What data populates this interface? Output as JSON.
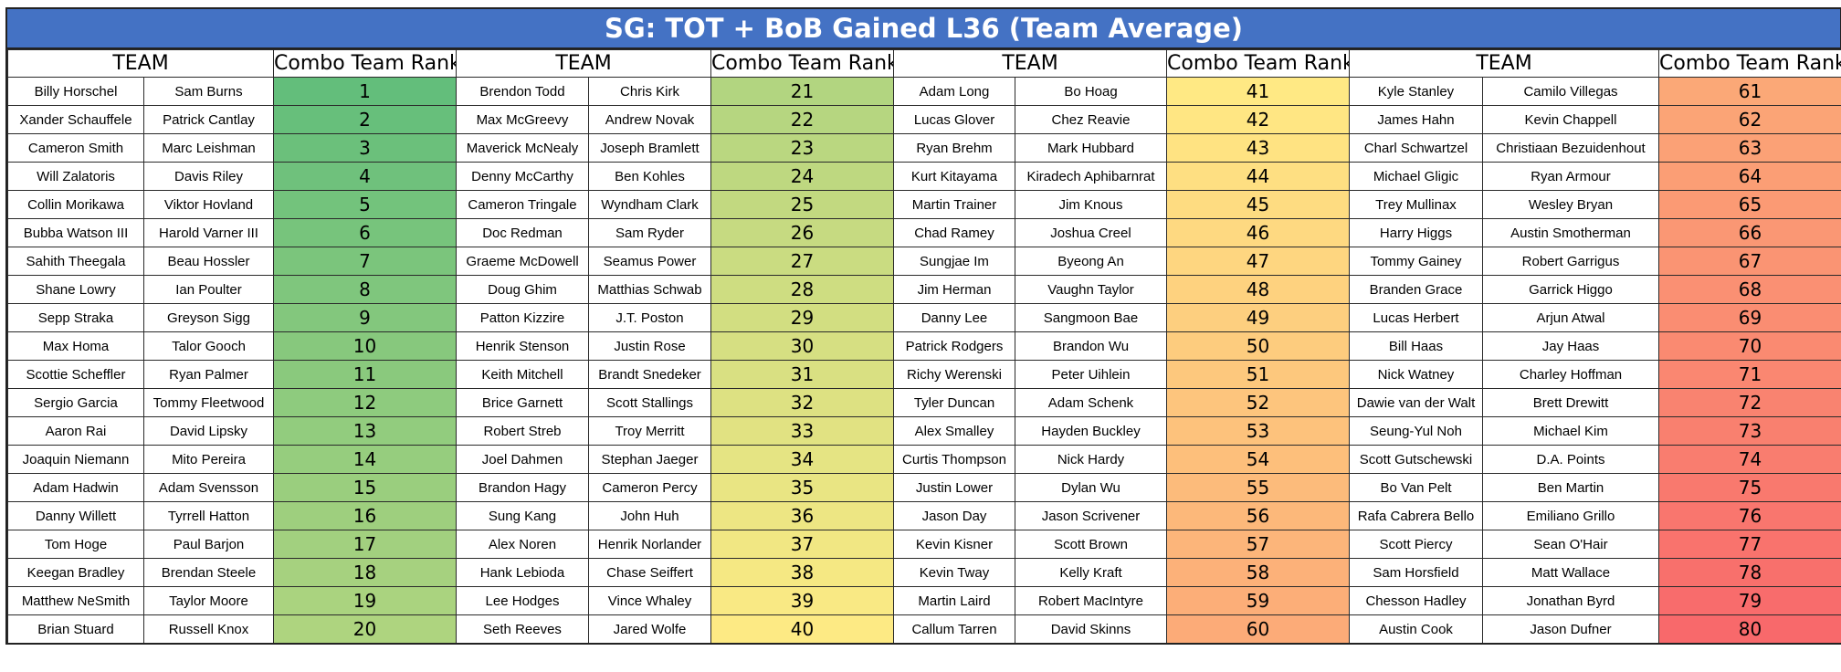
{
  "title": "SG: TOT + BoB Gained L36 (Team Average)",
  "headers": {
    "team": "TEAM",
    "rank": "Combo Team Rank"
  },
  "rank_colors": {
    "low": "#63BE7B",
    "mid": "#FFEB84",
    "high": "#F8696B"
  },
  "teams": [
    {
      "p1": "Billy Horschel",
      "p2": "Sam Burns",
      "rank": 1
    },
    {
      "p1": "Xander Schauffele",
      "p2": "Patrick Cantlay",
      "rank": 2
    },
    {
      "p1": "Cameron Smith",
      "p2": "Marc Leishman",
      "rank": 3
    },
    {
      "p1": "Will Zalatoris",
      "p2": "Davis Riley",
      "rank": 4
    },
    {
      "p1": "Collin Morikawa",
      "p2": "Viktor Hovland",
      "rank": 5
    },
    {
      "p1": "Bubba Watson III",
      "p2": "Harold Varner III",
      "rank": 6
    },
    {
      "p1": "Sahith Theegala",
      "p2": "Beau Hossler",
      "rank": 7
    },
    {
      "p1": "Shane Lowry",
      "p2": "Ian Poulter",
      "rank": 8
    },
    {
      "p1": "Sepp Straka",
      "p2": "Greyson Sigg",
      "rank": 9
    },
    {
      "p1": "Max Homa",
      "p2": "Talor Gooch",
      "rank": 10
    },
    {
      "p1": "Scottie Scheffler",
      "p2": "Ryan Palmer",
      "rank": 11
    },
    {
      "p1": "Sergio Garcia",
      "p2": "Tommy Fleetwood",
      "rank": 12
    },
    {
      "p1": "Aaron Rai",
      "p2": "David Lipsky",
      "rank": 13
    },
    {
      "p1": "Joaquin Niemann",
      "p2": "Mito Pereira",
      "rank": 14
    },
    {
      "p1": "Adam Hadwin",
      "p2": "Adam Svensson",
      "rank": 15
    },
    {
      "p1": "Danny Willett",
      "p2": "Tyrrell Hatton",
      "rank": 16
    },
    {
      "p1": "Tom Hoge",
      "p2": "Paul Barjon",
      "rank": 17
    },
    {
      "p1": "Keegan Bradley",
      "p2": "Brendan Steele",
      "rank": 18
    },
    {
      "p1": "Matthew NeSmith",
      "p2": "Taylor Moore",
      "rank": 19
    },
    {
      "p1": "Brian Stuard",
      "p2": "Russell Knox",
      "rank": 20
    },
    {
      "p1": "Brendon Todd",
      "p2": "Chris Kirk",
      "rank": 21
    },
    {
      "p1": "Max McGreevy",
      "p2": "Andrew Novak",
      "rank": 22
    },
    {
      "p1": "Maverick McNealy",
      "p2": "Joseph Bramlett",
      "rank": 23
    },
    {
      "p1": "Denny McCarthy",
      "p2": "Ben Kohles",
      "rank": 24
    },
    {
      "p1": "Cameron Tringale",
      "p2": "Wyndham Clark",
      "rank": 25
    },
    {
      "p1": "Doc Redman",
      "p2": "Sam Ryder",
      "rank": 26
    },
    {
      "p1": "Graeme McDowell",
      "p2": "Seamus Power",
      "rank": 27
    },
    {
      "p1": "Doug Ghim",
      "p2": "Matthias Schwab",
      "rank": 28
    },
    {
      "p1": "Patton Kizzire",
      "p2": "J.T. Poston",
      "rank": 29
    },
    {
      "p1": "Henrik Stenson",
      "p2": "Justin Rose",
      "rank": 30
    },
    {
      "p1": "Keith Mitchell",
      "p2": "Brandt Snedeker",
      "rank": 31
    },
    {
      "p1": "Brice Garnett",
      "p2": "Scott Stallings",
      "rank": 32
    },
    {
      "p1": "Robert Streb",
      "p2": "Troy Merritt",
      "rank": 33
    },
    {
      "p1": "Joel Dahmen",
      "p2": "Stephan Jaeger",
      "rank": 34
    },
    {
      "p1": "Brandon Hagy",
      "p2": "Cameron Percy",
      "rank": 35
    },
    {
      "p1": "Sung Kang",
      "p2": "John Huh",
      "rank": 36
    },
    {
      "p1": "Alex Noren",
      "p2": "Henrik Norlander",
      "rank": 37
    },
    {
      "p1": "Hank Lebioda",
      "p2": "Chase Seiffert",
      "rank": 38
    },
    {
      "p1": "Lee Hodges",
      "p2": "Vince Whaley",
      "rank": 39
    },
    {
      "p1": "Seth Reeves",
      "p2": "Jared Wolfe",
      "rank": 40
    },
    {
      "p1": "Adam Long",
      "p2": "Bo Hoag",
      "rank": 41
    },
    {
      "p1": "Lucas Glover",
      "p2": "Chez Reavie",
      "rank": 42
    },
    {
      "p1": "Ryan Brehm",
      "p2": "Mark Hubbard",
      "rank": 43
    },
    {
      "p1": "Kurt Kitayama",
      "p2": "Kiradech Aphibarnrat",
      "rank": 44
    },
    {
      "p1": "Martin Trainer",
      "p2": "Jim Knous",
      "rank": 45
    },
    {
      "p1": "Chad Ramey",
      "p2": "Joshua Creel",
      "rank": 46
    },
    {
      "p1": "Sungjae Im",
      "p2": "Byeong An",
      "rank": 47
    },
    {
      "p1": "Jim Herman",
      "p2": "Vaughn Taylor",
      "rank": 48
    },
    {
      "p1": "Danny Lee",
      "p2": "Sangmoon Bae",
      "rank": 49
    },
    {
      "p1": "Patrick Rodgers",
      "p2": "Brandon Wu",
      "rank": 50
    },
    {
      "p1": "Richy Werenski",
      "p2": "Peter Uihlein",
      "rank": 51
    },
    {
      "p1": "Tyler Duncan",
      "p2": "Adam Schenk",
      "rank": 52
    },
    {
      "p1": "Alex Smalley",
      "p2": "Hayden Buckley",
      "rank": 53
    },
    {
      "p1": "Curtis Thompson",
      "p2": "Nick Hardy",
      "rank": 54
    },
    {
      "p1": "Justin Lower",
      "p2": "Dylan Wu",
      "rank": 55
    },
    {
      "p1": "Jason Day",
      "p2": "Jason Scrivener",
      "rank": 56
    },
    {
      "p1": "Kevin Kisner",
      "p2": "Scott Brown",
      "rank": 57
    },
    {
      "p1": "Kevin Tway",
      "p2": "Kelly Kraft",
      "rank": 58
    },
    {
      "p1": "Martin Laird",
      "p2": "Robert MacIntyre",
      "rank": 59
    },
    {
      "p1": "Callum Tarren",
      "p2": "David Skinns",
      "rank": 60
    },
    {
      "p1": "Kyle Stanley",
      "p2": "Camilo Villegas",
      "rank": 61
    },
    {
      "p1": "James Hahn",
      "p2": "Kevin Chappell",
      "rank": 62
    },
    {
      "p1": "Charl Schwartzel",
      "p2": "Christiaan Bezuidenhout",
      "rank": 63
    },
    {
      "p1": "Michael Gligic",
      "p2": "Ryan Armour",
      "rank": 64
    },
    {
      "p1": "Trey Mullinax",
      "p2": "Wesley Bryan",
      "rank": 65
    },
    {
      "p1": "Harry Higgs",
      "p2": "Austin Smotherman",
      "rank": 66
    },
    {
      "p1": "Tommy Gainey",
      "p2": "Robert Garrigus",
      "rank": 67
    },
    {
      "p1": "Branden Grace",
      "p2": "Garrick Higgo",
      "rank": 68
    },
    {
      "p1": "Lucas Herbert",
      "p2": "Arjun Atwal",
      "rank": 69
    },
    {
      "p1": "Bill Haas",
      "p2": "Jay Haas",
      "rank": 70
    },
    {
      "p1": "Nick Watney",
      "p2": "Charley Hoffman",
      "rank": 71
    },
    {
      "p1": "Dawie van der Walt",
      "p2": "Brett Drewitt",
      "rank": 72
    },
    {
      "p1": "Seung-Yul Noh",
      "p2": "Michael Kim",
      "rank": 73
    },
    {
      "p1": "Scott Gutschewski",
      "p2": "D.A. Points",
      "rank": 74
    },
    {
      "p1": "Bo Van Pelt",
      "p2": "Ben Martin",
      "rank": 75
    },
    {
      "p1": "Rafa Cabrera Bello",
      "p2": "Emiliano Grillo",
      "rank": 76
    },
    {
      "p1": "Scott Piercy",
      "p2": "Sean O'Hair",
      "rank": 77
    },
    {
      "p1": "Sam Horsfield",
      "p2": "Matt Wallace",
      "rank": 78
    },
    {
      "p1": "Chesson Hadley",
      "p2": "Jonathan Byrd",
      "rank": 79
    },
    {
      "p1": "Austin Cook",
      "p2": "Jason Dufner",
      "rank": 80
    }
  ]
}
